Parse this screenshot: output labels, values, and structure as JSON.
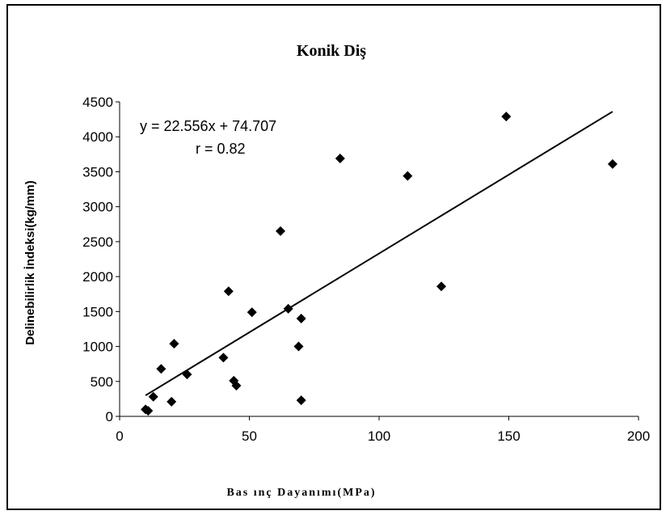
{
  "chart_data": {
    "type": "scatter",
    "title": "Konik Diş",
    "xlabel": "Bas ınç Dayanımı(MPa)",
    "ylabel": "Delinebilirlik İndeksi(kg/mm)",
    "xlim": [
      0,
      200
    ],
    "ylim": [
      0,
      4500
    ],
    "x_ticks": [
      0,
      50,
      100,
      150,
      200
    ],
    "y_ticks": [
      0,
      500,
      1000,
      1500,
      2000,
      2500,
      3000,
      3500,
      4000,
      4500
    ],
    "grid": false,
    "legend": "none",
    "marker": "diamond",
    "marker_color": "#000000",
    "points": [
      {
        "x": 10,
        "y": 100
      },
      {
        "x": 11,
        "y": 80
      },
      {
        "x": 13,
        "y": 280
      },
      {
        "x": 16,
        "y": 680
      },
      {
        "x": 20,
        "y": 210
      },
      {
        "x": 21,
        "y": 1040
      },
      {
        "x": 26,
        "y": 600
      },
      {
        "x": 40,
        "y": 840
      },
      {
        "x": 42,
        "y": 1790
      },
      {
        "x": 44,
        "y": 510
      },
      {
        "x": 45,
        "y": 440
      },
      {
        "x": 51,
        "y": 1490
      },
      {
        "x": 62,
        "y": 2650
      },
      {
        "x": 65,
        "y": 1540
      },
      {
        "x": 69,
        "y": 1000
      },
      {
        "x": 70,
        "y": 1400
      },
      {
        "x": 70,
        "y": 230
      },
      {
        "x": 85,
        "y": 3690
      },
      {
        "x": 111,
        "y": 3440
      },
      {
        "x": 124,
        "y": 1860
      },
      {
        "x": 149,
        "y": 4290
      },
      {
        "x": 190,
        "y": 3610
      }
    ],
    "trendline": {
      "slope": 22.556,
      "intercept": 74.707,
      "x_range": [
        10,
        190
      ],
      "equation_text": "y = 22.556x + 74.707",
      "r_text": "r = 0.82"
    }
  }
}
